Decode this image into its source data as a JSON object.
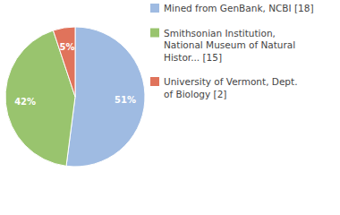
{
  "chart_data": {
    "type": "pie",
    "categories": [
      "Mined from GenBank, NCBI [18]",
      "Smithsonian Institution,\nNational Museum of Natural\nHistor... [15]",
      "University of Vermont, Dept.\nof Biology [2]"
    ],
    "values": [
      51,
      42,
      5
    ],
    "value_labels": [
      "51%",
      "42%",
      "5%"
    ],
    "colors": [
      "#9fbbe2",
      "#99c46e",
      "#e0735b"
    ],
    "data_labels": true,
    "legend": "top-right"
  }
}
